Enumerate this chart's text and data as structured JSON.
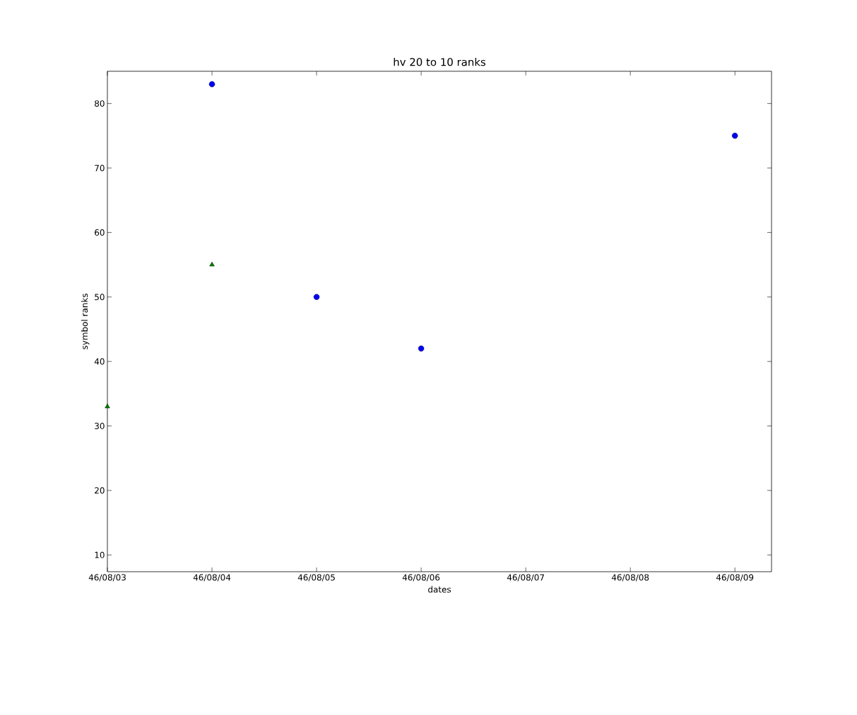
{
  "chart_data": {
    "type": "scatter",
    "title": "hv 20 to 10 ranks",
    "xlabel": "dates",
    "ylabel": "symbol ranks",
    "categories": [
      "46/08/03",
      "46/08/04",
      "46/08/05",
      "46/08/06",
      "46/08/07",
      "46/08/08",
      "46/08/09"
    ],
    "ylim": [
      7.4,
      85
    ],
    "yticks": [
      10,
      20,
      30,
      40,
      50,
      60,
      70,
      80
    ],
    "grid": false,
    "series": [
      {
        "color": "#0000ff",
        "marker": "circle",
        "values": [
          null,
          83,
          50,
          42,
          null,
          null,
          75
        ]
      },
      {
        "color": "#007f00",
        "marker": "triangle",
        "values": [
          33,
          55,
          null,
          null,
          null,
          null,
          null
        ]
      }
    ]
  }
}
